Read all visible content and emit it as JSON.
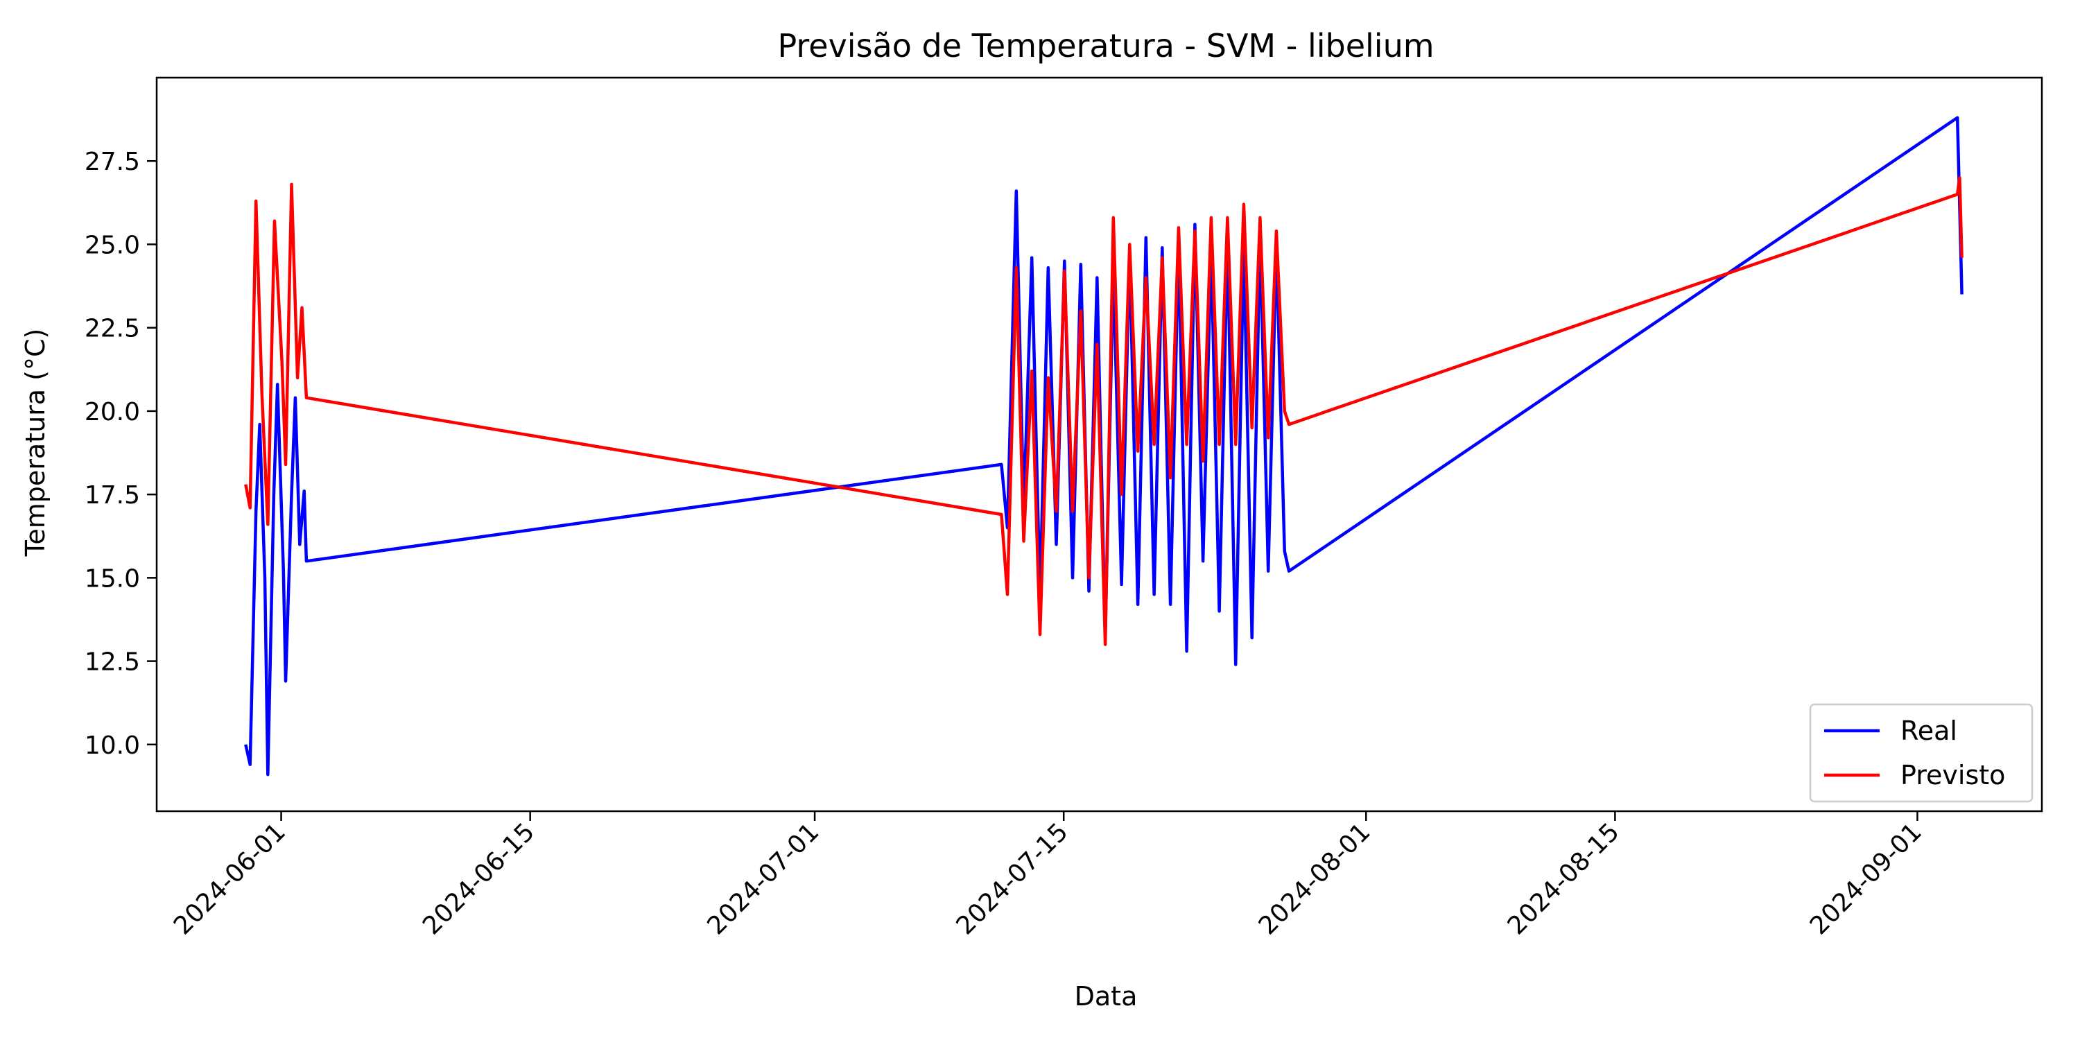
{
  "chart_data": {
    "type": "line",
    "title": "Previsão de Temperatura - SVM - libelium",
    "xlabel": "Data",
    "ylabel": "Temperatura (°C)",
    "x_axis_type": "date",
    "xlim": [
      "2024-05-25",
      "2024-09-08"
    ],
    "ylim": [
      8,
      30
    ],
    "xticks": [
      "2024-06-01",
      "2024-06-15",
      "2024-07-01",
      "2024-07-15",
      "2024-08-01",
      "2024-08-15",
      "2024-09-01"
    ],
    "yticks": [
      10.0,
      12.5,
      15.0,
      17.5,
      20.0,
      22.5,
      25.0,
      27.5
    ],
    "ytick_labels": [
      "10.0",
      "12.5",
      "15.0",
      "17.5",
      "20.0",
      "22.5",
      "25.0",
      "27.5"
    ],
    "grid": false,
    "legend_position": "lower-right",
    "series": [
      {
        "name": "Real",
        "color": "#0000ff",
        "points": [
          [
            "2024-05-30T00:00",
            10.0
          ],
          [
            "2024-05-30T06:00",
            9.4
          ],
          [
            "2024-05-30T14:00",
            17.0
          ],
          [
            "2024-05-30T19:00",
            19.6
          ],
          [
            "2024-05-31T02:00",
            15.0
          ],
          [
            "2024-05-31T06:00",
            9.1
          ],
          [
            "2024-05-31T14:00",
            17.5
          ],
          [
            "2024-05-31T19:00",
            20.8
          ],
          [
            "2024-06-01T03:00",
            15.2
          ],
          [
            "2024-06-01T06:00",
            11.9
          ],
          [
            "2024-06-01T14:00",
            17.5
          ],
          [
            "2024-06-01T19:00",
            20.4
          ],
          [
            "2024-06-02T01:00",
            16.0
          ],
          [
            "2024-06-02T07:00",
            17.6
          ],
          [
            "2024-06-02T10:00",
            15.5
          ],
          [
            "2024-07-11T12:00",
            18.4
          ],
          [
            "2024-07-11T20:00",
            16.5
          ],
          [
            "2024-07-12T08:00",
            26.6
          ],
          [
            "2024-07-12T18:00",
            17.0
          ],
          [
            "2024-07-13T05:00",
            24.6
          ],
          [
            "2024-07-13T16:00",
            14.4
          ],
          [
            "2024-07-14T03:00",
            24.3
          ],
          [
            "2024-07-14T14:00",
            16.0
          ],
          [
            "2024-07-15T01:00",
            24.5
          ],
          [
            "2024-07-15T12:00",
            15.0
          ],
          [
            "2024-07-15T23:00",
            24.4
          ],
          [
            "2024-07-16T10:00",
            14.6
          ],
          [
            "2024-07-16T21:00",
            24.0
          ],
          [
            "2024-07-17T08:00",
            13.2
          ],
          [
            "2024-07-17T19:00",
            24.3
          ],
          [
            "2024-07-18T06:00",
            14.8
          ],
          [
            "2024-07-18T17:00",
            24.8
          ],
          [
            "2024-07-19T04:00",
            14.2
          ],
          [
            "2024-07-19T15:00",
            25.2
          ],
          [
            "2024-07-20T02:00",
            14.5
          ],
          [
            "2024-07-20T13:00",
            24.9
          ],
          [
            "2024-07-21T00:00",
            14.2
          ],
          [
            "2024-07-21T11:00",
            25.1
          ],
          [
            "2024-07-21T22:00",
            12.8
          ],
          [
            "2024-07-22T09:00",
            25.6
          ],
          [
            "2024-07-22T20:00",
            15.5
          ],
          [
            "2024-07-23T07:00",
            24.9
          ],
          [
            "2024-07-23T18:00",
            14.0
          ],
          [
            "2024-07-24T05:00",
            25.2
          ],
          [
            "2024-07-24T16:00",
            12.4
          ],
          [
            "2024-07-25T03:00",
            25.0
          ],
          [
            "2024-07-25T14:00",
            13.2
          ],
          [
            "2024-07-26T01:00",
            25.3
          ],
          [
            "2024-07-26T12:00",
            15.2
          ],
          [
            "2024-07-26T23:00",
            25.0
          ],
          [
            "2024-07-27T10:00",
            15.8
          ],
          [
            "2024-07-27T16:00",
            15.2
          ],
          [
            "2024-09-03T06:00",
            28.8
          ],
          [
            "2024-09-03T12:00",
            23.5
          ]
        ]
      },
      {
        "name": "Previsto",
        "color": "#ff0000",
        "points": [
          [
            "2024-05-30T00:00",
            17.8
          ],
          [
            "2024-05-30T06:00",
            17.1
          ],
          [
            "2024-05-30T14:00",
            26.3
          ],
          [
            "2024-05-30T22:00",
            20.5
          ],
          [
            "2024-05-31T06:00",
            16.6
          ],
          [
            "2024-05-31T15:00",
            25.7
          ],
          [
            "2024-06-01T01:00",
            21.5
          ],
          [
            "2024-06-01T06:00",
            18.4
          ],
          [
            "2024-06-01T14:00",
            26.8
          ],
          [
            "2024-06-01T22:00",
            21.0
          ],
          [
            "2024-06-02T04:00",
            23.1
          ],
          [
            "2024-06-02T10:00",
            20.4
          ],
          [
            "2024-07-11T12:00",
            16.9
          ],
          [
            "2024-07-11T20:00",
            14.5
          ],
          [
            "2024-07-12T08:00",
            24.3
          ],
          [
            "2024-07-12T18:00",
            16.1
          ],
          [
            "2024-07-13T05:00",
            21.2
          ],
          [
            "2024-07-13T16:00",
            13.3
          ],
          [
            "2024-07-14T03:00",
            21.0
          ],
          [
            "2024-07-14T14:00",
            17.0
          ],
          [
            "2024-07-15T01:00",
            24.2
          ],
          [
            "2024-07-15T12:00",
            17.0
          ],
          [
            "2024-07-15T23:00",
            23.0
          ],
          [
            "2024-07-16T10:00",
            15.0
          ],
          [
            "2024-07-16T21:00",
            22.0
          ],
          [
            "2024-07-17T08:00",
            13.0
          ],
          [
            "2024-07-17T19:00",
            25.8
          ],
          [
            "2024-07-18T06:00",
            17.5
          ],
          [
            "2024-07-18T17:00",
            25.0
          ],
          [
            "2024-07-19T04:00",
            18.8
          ],
          [
            "2024-07-19T15:00",
            24.0
          ],
          [
            "2024-07-20T02:00",
            19.0
          ],
          [
            "2024-07-20T13:00",
            24.6
          ],
          [
            "2024-07-21T00:00",
            18.0
          ],
          [
            "2024-07-21T11:00",
            25.5
          ],
          [
            "2024-07-21T22:00",
            19.0
          ],
          [
            "2024-07-22T09:00",
            25.4
          ],
          [
            "2024-07-22T20:00",
            18.5
          ],
          [
            "2024-07-23T07:00",
            25.8
          ],
          [
            "2024-07-23T18:00",
            19.0
          ],
          [
            "2024-07-24T05:00",
            25.8
          ],
          [
            "2024-07-24T16:00",
            19.0
          ],
          [
            "2024-07-25T03:00",
            26.2
          ],
          [
            "2024-07-25T14:00",
            19.5
          ],
          [
            "2024-07-26T01:00",
            25.8
          ],
          [
            "2024-07-26T12:00",
            19.2
          ],
          [
            "2024-07-26T23:00",
            25.4
          ],
          [
            "2024-07-27T10:00",
            20.0
          ],
          [
            "2024-07-27T16:00",
            19.6
          ],
          [
            "2024-09-03T06:00",
            26.5
          ],
          [
            "2024-09-03T09:00",
            27.0
          ],
          [
            "2024-09-03T12:00",
            24.6
          ]
        ]
      }
    ]
  }
}
